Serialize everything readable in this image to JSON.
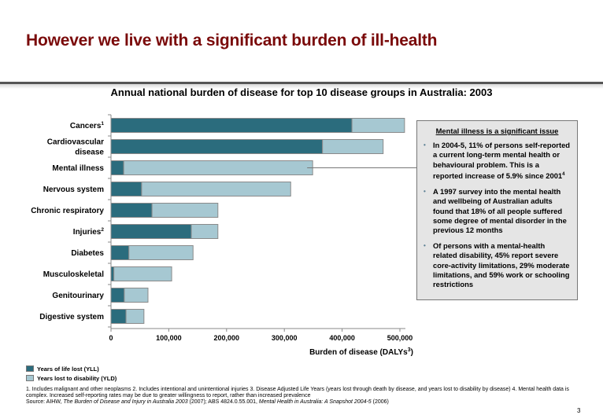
{
  "slide": {
    "title": "However we live with a significant burden of ill-health",
    "page_number": "3"
  },
  "colors": {
    "title": "#7a0a0a",
    "yll": "#2b6c7d",
    "yld": "#a6c8d2",
    "callout_bg": "#e5e5e5"
  },
  "chart_data": {
    "type": "bar",
    "orientation": "horizontal",
    "stacked": true,
    "title": "Annual national burden of disease for top 10 disease groups in Australia: 2003",
    "xlabel": "Burden of disease (DALYs",
    "xlabel_sup": "3",
    "xlabel_close": ")",
    "ylabel": "",
    "xlim": [
      0,
      500000
    ],
    "xticks": [
      0,
      100000,
      200000,
      300000,
      400000,
      500000
    ],
    "xtick_labels": [
      "0",
      "100,000",
      "200,000",
      "300,000",
      "400,000",
      "500,000"
    ],
    "categories": [
      {
        "lines": [
          "Cancers"
        ],
        "sup": "1"
      },
      {
        "lines": [
          "Cardiovascular",
          "disease"
        ],
        "sup": ""
      },
      {
        "lines": [
          "Mental illness"
        ],
        "sup": ""
      },
      {
        "lines": [
          "Nervous system"
        ],
        "sup": ""
      },
      {
        "lines": [
          "Chronic respiratory"
        ],
        "sup": ""
      },
      {
        "lines": [
          "Injuries"
        ],
        "sup": "2"
      },
      {
        "lines": [
          "Diabetes"
        ],
        "sup": ""
      },
      {
        "lines": [
          "Musculoskeletal"
        ],
        "sup": ""
      },
      {
        "lines": [
          "Genitourinary"
        ],
        "sup": ""
      },
      {
        "lines": [
          "Digestive system"
        ],
        "sup": ""
      }
    ],
    "series": [
      {
        "name": "Years of life lost (YLL)",
        "values": [
          417000,
          366000,
          22000,
          53000,
          71000,
          139000,
          31000,
          5000,
          23000,
          26000
        ]
      },
      {
        "name": "Years lost to disability (YLD)",
        "values": [
          91000,
          105000,
          327000,
          258000,
          114000,
          46000,
          111000,
          100000,
          41000,
          31000
        ]
      }
    ],
    "grid": false,
    "legend": "bottom-left",
    "annotation_target": "Mental illness"
  },
  "callout": {
    "heading": "Mental illness is a significant issue",
    "bullets": [
      {
        "text": "In 2004-5, 11% of persons self-reported a current long-term mental health or behavioural problem.  This is a reported increase of 5.9% since 2001",
        "sup": "4"
      },
      {
        "text": "A 1997 survey into the mental health and wellbeing of Australian adults found that 18% of all people suffered some degree of mental disorder in the previous 12 months",
        "sup": ""
      },
      {
        "text": "Of persons with a mental-health related disability, 45% report severe core-activity limitations, 29% moderate limitations, and 59% work or schooling restrictions",
        "sup": ""
      }
    ]
  },
  "legend": {
    "yll": "Years of life lost (YLL)",
    "yld": "Years lost to disability (YLD)"
  },
  "footnotes": {
    "line1": "1. Includes malignant and other neoplasms   2. Includes intentional and unintentional injuries   3. Disease Adjusted Life Years (years lost through death by disease, and years lost to disability by disease)  4. Mental health data is complex.  Increased self-reporting rates may be due to greater willingness to report, rather than increased prevalence",
    "source_prefix": "Source: AIHW, ",
    "source_title1": "The Burden of Disease and Injury in Australia 2003",
    "source_mid": " (2007); ABS 4824.0.55.001, ",
    "source_title2": "Mental Health in Australia: A Snapshot 2004-5",
    "source_end": " (2006)"
  }
}
